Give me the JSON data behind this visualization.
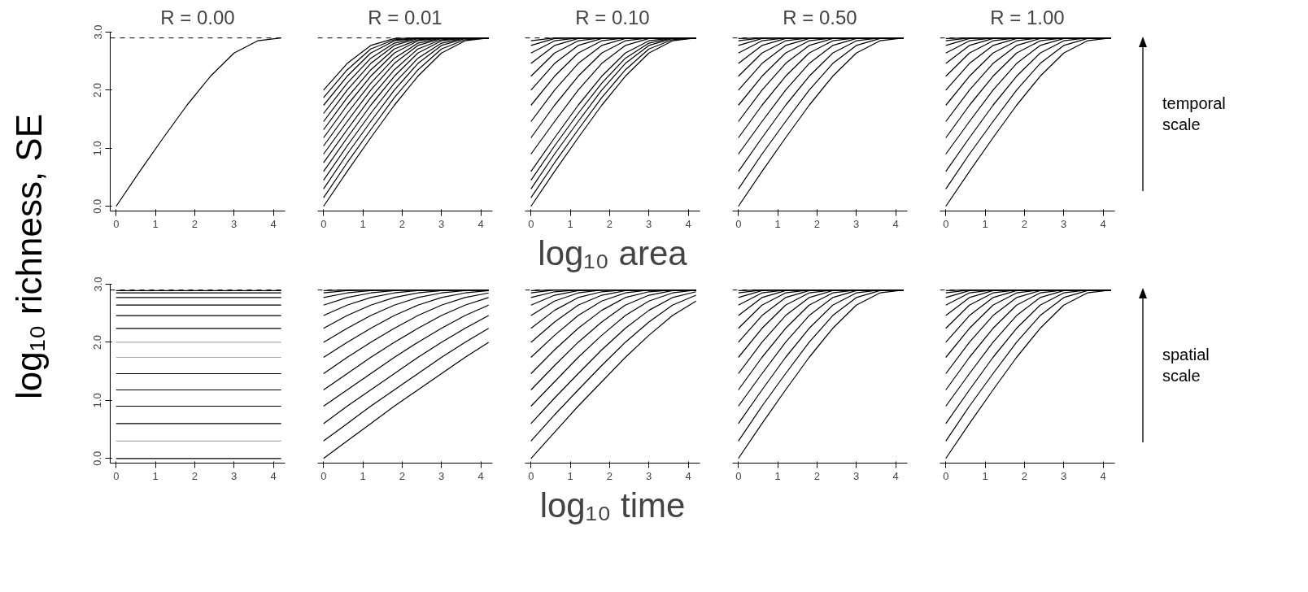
{
  "chart_data": [
    {
      "type": "line",
      "title": "R = 0.00",
      "ylabel": "log₁₀ richness, SE",
      "x": [
        0,
        0.6,
        1.2,
        1.8,
        2.4,
        3.0,
        3.6,
        4.2
      ],
      "xlim": [
        -0.15,
        4.3
      ],
      "ylim": [
        -0.08,
        3.0
      ],
      "xticks": [
        0,
        1,
        2,
        3,
        4
      ],
      "yticks": [
        {
          "value": 0,
          "label": "0.0"
        },
        {
          "value": 1,
          "label": "1.0"
        },
        {
          "value": 2,
          "label": "2.0"
        },
        {
          "value": 3,
          "label": "3.0"
        }
      ],
      "ref_lines": [
        {
          "axis": "y",
          "value": 2.9,
          "line_style": "dashed",
          "color": "#000000"
        }
      ],
      "series": [
        {
          "color": "#000000",
          "values": [
            0,
            0.6,
            1.18,
            1.74,
            2.24,
            2.64,
            2.85,
            2.9
          ]
        }
      ]
    },
    {
      "type": "line",
      "title": "R = 0.01",
      "tick_labels": "x",
      "x": [
        0,
        0.6,
        1.2,
        1.8,
        2.4,
        3.0,
        3.6,
        4.2
      ],
      "xlim": [
        -0.15,
        4.3
      ],
      "ylim": [
        -0.08,
        3.0
      ],
      "xticks": [
        0,
        1,
        2,
        3,
        4
      ],
      "ref_lines": [
        {
          "axis": "y",
          "value": 2.9,
          "line_style": "dashed",
          "color": "#000000"
        }
      ],
      "series": [
        {
          "color": "#000000",
          "values": [
            0,
            0.6,
            1.18,
            1.74,
            2.24,
            2.64,
            2.85,
            2.9
          ]
        },
        {
          "color": "#000000",
          "values": [
            0.15,
            0.75,
            1.32,
            1.87,
            2.35,
            2.71,
            2.87,
            2.9
          ]
        },
        {
          "color": "#000000",
          "values": [
            0.3,
            0.9,
            1.46,
            2.0,
            2.46,
            2.77,
            2.89,
            2.9
          ]
        },
        {
          "color": "#000000",
          "values": [
            0.45,
            1.04,
            1.6,
            2.12,
            2.55,
            2.81,
            2.9,
            2.9
          ]
        },
        {
          "color": "#000000",
          "values": [
            0.6,
            1.18,
            1.74,
            2.24,
            2.64,
            2.85,
            2.9,
            2.9
          ]
        },
        {
          "color": "#000000",
          "values": [
            0.75,
            1.32,
            1.87,
            2.35,
            2.71,
            2.87,
            2.9,
            2.9
          ]
        },
        {
          "color": "#000000",
          "values": [
            0.9,
            1.46,
            2.0,
            2.46,
            2.77,
            2.89,
            2.9,
            2.9
          ]
        },
        {
          "color": "#000000",
          "values": [
            1.04,
            1.6,
            2.12,
            2.55,
            2.81,
            2.9,
            2.9,
            2.9
          ]
        },
        {
          "color": "#000000",
          "values": [
            1.18,
            1.74,
            2.24,
            2.64,
            2.85,
            2.9,
            2.9,
            2.9
          ]
        },
        {
          "color": "#000000",
          "values": [
            1.32,
            1.87,
            2.35,
            2.71,
            2.87,
            2.9,
            2.9,
            2.9
          ]
        },
        {
          "color": "#000000",
          "values": [
            1.46,
            2.0,
            2.46,
            2.77,
            2.89,
            2.9,
            2.9,
            2.9
          ]
        },
        {
          "color": "#000000",
          "values": [
            1.6,
            2.12,
            2.55,
            2.81,
            2.9,
            2.9,
            2.9,
            2.9
          ]
        },
        {
          "color": "#000000",
          "values": [
            1.74,
            2.24,
            2.64,
            2.85,
            2.9,
            2.9,
            2.9,
            2.9
          ]
        },
        {
          "color": "#000000",
          "values": [
            1.87,
            2.35,
            2.71,
            2.87,
            2.9,
            2.9,
            2.9,
            2.9
          ]
        },
        {
          "color": "#000000",
          "values": [
            2.0,
            2.46,
            2.77,
            2.89,
            2.9,
            2.9,
            2.9,
            2.9
          ]
        }
      ]
    },
    {
      "type": "line",
      "title": "R = 0.10",
      "xlabel": "log₁₀ area",
      "tick_labels": "x",
      "x": [
        0,
        0.6,
        1.2,
        1.8,
        2.4,
        3.0,
        3.6,
        4.2
      ],
      "xlim": [
        -0.15,
        4.3
      ],
      "ylim": [
        -0.08,
        3.0
      ],
      "xticks": [
        0,
        1,
        2,
        3,
        4
      ],
      "ref_lines": [
        {
          "axis": "y",
          "value": 2.9,
          "line_style": "dashed",
          "color": "#000000"
        }
      ],
      "series": [
        {
          "color": "#000000",
          "values": [
            0,
            0.6,
            1.18,
            1.74,
            2.24,
            2.64,
            2.85,
            2.9
          ]
        },
        {
          "color": "#000000",
          "values": [
            0.15,
            0.75,
            1.32,
            1.87,
            2.35,
            2.71,
            2.87,
            2.9
          ]
        },
        {
          "color": "#000000",
          "values": [
            0.3,
            0.9,
            1.46,
            2.0,
            2.46,
            2.77,
            2.89,
            2.9
          ]
        },
        {
          "color": "#000000",
          "values": [
            0.45,
            1.04,
            1.6,
            2.12,
            2.55,
            2.81,
            2.9,
            2.9
          ]
        },
        {
          "color": "#000000",
          "values": [
            0.6,
            1.18,
            1.74,
            2.24,
            2.64,
            2.85,
            2.9,
            2.9
          ]
        },
        {
          "color": "#000000",
          "values": [
            0.9,
            1.46,
            2.0,
            2.46,
            2.77,
            2.89,
            2.9,
            2.9
          ]
        },
        {
          "color": "#000000",
          "values": [
            1.18,
            1.74,
            2.24,
            2.64,
            2.85,
            2.9,
            2.9,
            2.9
          ]
        },
        {
          "color": "#000000",
          "values": [
            1.46,
            2.0,
            2.46,
            2.77,
            2.89,
            2.9,
            2.9,
            2.9
          ]
        },
        {
          "color": "#000000",
          "values": [
            1.74,
            2.24,
            2.64,
            2.85,
            2.9,
            2.9,
            2.9,
            2.9
          ]
        },
        {
          "color": "#000000",
          "values": [
            2.0,
            2.46,
            2.77,
            2.89,
            2.9,
            2.9,
            2.9,
            2.9
          ]
        },
        {
          "color": "#000000",
          "values": [
            2.24,
            2.64,
            2.85,
            2.9,
            2.9,
            2.9,
            2.9,
            2.9
          ]
        },
        {
          "color": "#000000",
          "values": [
            2.46,
            2.77,
            2.89,
            2.9,
            2.9,
            2.9,
            2.9,
            2.9
          ]
        },
        {
          "color": "#000000",
          "values": [
            2.64,
            2.85,
            2.9,
            2.9,
            2.9,
            2.9,
            2.9,
            2.9
          ]
        },
        {
          "color": "#000000",
          "values": [
            2.77,
            2.89,
            2.9,
            2.9,
            2.9,
            2.9,
            2.9,
            2.9
          ]
        },
        {
          "color": "#000000",
          "values": [
            2.85,
            2.9,
            2.9,
            2.9,
            2.9,
            2.9,
            2.9,
            2.9
          ]
        }
      ]
    },
    {
      "type": "line",
      "title": "R = 0.50",
      "tick_labels": "x",
      "x": [
        0,
        0.6,
        1.2,
        1.8,
        2.4,
        3.0,
        3.6,
        4.2
      ],
      "xlim": [
        -0.15,
        4.3
      ],
      "ylim": [
        -0.08,
        3.0
      ],
      "xticks": [
        0,
        1,
        2,
        3,
        4
      ],
      "ref_lines": [
        {
          "axis": "y",
          "value": 2.9,
          "line_style": "dashed",
          "color": "#000000"
        }
      ],
      "series": [
        {
          "color": "#000000",
          "values": [
            0,
            0.6,
            1.18,
            1.74,
            2.24,
            2.64,
            2.85,
            2.9
          ]
        },
        {
          "color": "#000000",
          "values": [
            0.3,
            0.9,
            1.46,
            2.0,
            2.46,
            2.77,
            2.89,
            2.9
          ]
        },
        {
          "color": "#000000",
          "values": [
            0.6,
            1.18,
            1.74,
            2.24,
            2.64,
            2.85,
            2.9,
            2.9
          ]
        },
        {
          "color": "#000000",
          "values": [
            0.9,
            1.46,
            2.0,
            2.46,
            2.77,
            2.89,
            2.9,
            2.9
          ]
        },
        {
          "color": "#000000",
          "values": [
            1.18,
            1.74,
            2.24,
            2.64,
            2.85,
            2.9,
            2.9,
            2.9
          ]
        },
        {
          "color": "#000000",
          "values": [
            1.46,
            2.0,
            2.46,
            2.77,
            2.89,
            2.9,
            2.9,
            2.9
          ]
        },
        {
          "color": "#000000",
          "values": [
            1.74,
            2.24,
            2.64,
            2.85,
            2.9,
            2.9,
            2.9,
            2.9
          ]
        },
        {
          "color": "#000000",
          "values": [
            2.0,
            2.46,
            2.77,
            2.89,
            2.9,
            2.9,
            2.9,
            2.9
          ]
        },
        {
          "color": "#000000",
          "values": [
            2.24,
            2.64,
            2.85,
            2.9,
            2.9,
            2.9,
            2.9,
            2.9
          ]
        },
        {
          "color": "#000000",
          "values": [
            2.46,
            2.77,
            2.89,
            2.9,
            2.9,
            2.9,
            2.9,
            2.9
          ]
        },
        {
          "color": "#000000",
          "values": [
            2.64,
            2.85,
            2.9,
            2.9,
            2.9,
            2.9,
            2.9,
            2.9
          ]
        },
        {
          "color": "#000000",
          "values": [
            2.77,
            2.89,
            2.9,
            2.9,
            2.9,
            2.9,
            2.9,
            2.9
          ]
        },
        {
          "color": "#000000",
          "values": [
            2.85,
            2.9,
            2.9,
            2.9,
            2.9,
            2.9,
            2.9,
            2.9
          ]
        },
        {
          "color": "#000000",
          "values": [
            2.89,
            2.9,
            2.9,
            2.9,
            2.9,
            2.9,
            2.9,
            2.9
          ]
        }
      ]
    },
    {
      "type": "line",
      "title": "R = 1.00",
      "tick_labels": "x",
      "annotations": [
        "temporal scale"
      ],
      "x": [
        0,
        0.6,
        1.2,
        1.8,
        2.4,
        3.0,
        3.6,
        4.2
      ],
      "xlim": [
        -0.15,
        4.3
      ],
      "ylim": [
        -0.08,
        3.0
      ],
      "xticks": [
        0,
        1,
        2,
        3,
        4
      ],
      "ref_lines": [
        {
          "axis": "y",
          "value": 2.9,
          "line_style": "dashed",
          "color": "#000000"
        }
      ],
      "series": [
        {
          "color": "#000000",
          "values": [
            0,
            0.6,
            1.18,
            1.74,
            2.24,
            2.64,
            2.85,
            2.9
          ]
        },
        {
          "color": "#000000",
          "values": [
            0.3,
            0.9,
            1.46,
            2.0,
            2.46,
            2.77,
            2.89,
            2.9
          ]
        },
        {
          "color": "#000000",
          "values": [
            0.6,
            1.18,
            1.74,
            2.24,
            2.64,
            2.85,
            2.9,
            2.9
          ]
        },
        {
          "color": "#000000",
          "values": [
            0.9,
            1.46,
            2.0,
            2.46,
            2.77,
            2.89,
            2.9,
            2.9
          ]
        },
        {
          "color": "#000000",
          "values": [
            1.18,
            1.74,
            2.24,
            2.64,
            2.85,
            2.9,
            2.9,
            2.9
          ]
        },
        {
          "color": "#000000",
          "values": [
            1.46,
            2.0,
            2.46,
            2.77,
            2.89,
            2.9,
            2.9,
            2.9
          ]
        },
        {
          "color": "#000000",
          "values": [
            1.74,
            2.24,
            2.64,
            2.85,
            2.9,
            2.9,
            2.9,
            2.9
          ]
        },
        {
          "color": "#000000",
          "values": [
            2.0,
            2.46,
            2.77,
            2.89,
            2.9,
            2.9,
            2.9,
            2.9
          ]
        },
        {
          "color": "#000000",
          "values": [
            2.24,
            2.64,
            2.85,
            2.9,
            2.9,
            2.9,
            2.9,
            2.9
          ]
        },
        {
          "color": "#000000",
          "values": [
            2.46,
            2.77,
            2.89,
            2.9,
            2.9,
            2.9,
            2.9,
            2.9
          ]
        },
        {
          "color": "#000000",
          "values": [
            2.64,
            2.85,
            2.9,
            2.9,
            2.9,
            2.9,
            2.9,
            2.9
          ]
        },
        {
          "color": "#000000",
          "values": [
            2.77,
            2.89,
            2.9,
            2.9,
            2.9,
            2.9,
            2.9,
            2.9
          ]
        },
        {
          "color": "#000000",
          "values": [
            2.85,
            2.9,
            2.9,
            2.9,
            2.9,
            2.9,
            2.9,
            2.9
          ]
        },
        {
          "color": "#000000",
          "values": [
            2.89,
            2.9,
            2.9,
            2.9,
            2.9,
            2.9,
            2.9,
            2.9
          ]
        }
      ]
    },
    {
      "type": "line",
      "x": [
        0,
        0.6,
        1.2,
        1.8,
        2.4,
        3.0,
        3.6,
        4.2
      ],
      "xlim": [
        -0.15,
        4.3
      ],
      "ylim": [
        -0.08,
        3.0
      ],
      "xticks": [
        0,
        1,
        2,
        3,
        4
      ],
      "yticks": [
        {
          "value": 0,
          "label": "0.0"
        },
        {
          "value": 1,
          "label": "1.0"
        },
        {
          "value": 2,
          "label": "2.0"
        },
        {
          "value": 3,
          "label": "3.0"
        }
      ],
      "ref_lines": [
        {
          "axis": "y",
          "value": 2.9,
          "line_style": "dashed",
          "color": "#000000"
        }
      ],
      "series": [
        {
          "color": "#000000",
          "values": [
            0,
            0,
            0,
            0,
            0,
            0,
            0,
            0
          ]
        },
        {
          "color": "#aaaaaa",
          "values": [
            0.3,
            0.3,
            0.3,
            0.3,
            0.3,
            0.3,
            0.3,
            0.3
          ]
        },
        {
          "color": "#000000",
          "values": [
            0.6,
            0.6,
            0.6,
            0.6,
            0.6,
            0.6,
            0.6,
            0.6
          ]
        },
        {
          "color": "#000000",
          "values": [
            0.9,
            0.9,
            0.9,
            0.9,
            0.9,
            0.9,
            0.9,
            0.9
          ]
        },
        {
          "color": "#000000",
          "values": [
            1.18,
            1.18,
            1.18,
            1.18,
            1.18,
            1.18,
            1.18,
            1.18
          ]
        },
        {
          "color": "#000000",
          "values": [
            1.46,
            1.46,
            1.46,
            1.46,
            1.46,
            1.46,
            1.46,
            1.46
          ]
        },
        {
          "color": "#aaaaaa",
          "values": [
            1.74,
            1.74,
            1.74,
            1.74,
            1.74,
            1.74,
            1.74,
            1.74
          ]
        },
        {
          "color": "#aaaaaa",
          "values": [
            2.0,
            2.0,
            2.0,
            2.0,
            2.0,
            2.0,
            2.0,
            2.0
          ]
        },
        {
          "color": "#000000",
          "values": [
            2.24,
            2.24,
            2.24,
            2.24,
            2.24,
            2.24,
            2.24,
            2.24
          ]
        },
        {
          "color": "#000000",
          "values": [
            2.46,
            2.46,
            2.46,
            2.46,
            2.46,
            2.46,
            2.46,
            2.46
          ]
        },
        {
          "color": "#000000",
          "values": [
            2.64,
            2.64,
            2.64,
            2.64,
            2.64,
            2.64,
            2.64,
            2.64
          ]
        },
        {
          "color": "#000000",
          "values": [
            2.77,
            2.77,
            2.77,
            2.77,
            2.77,
            2.77,
            2.77,
            2.77
          ]
        },
        {
          "color": "#000000",
          "values": [
            2.85,
            2.85,
            2.85,
            2.85,
            2.85,
            2.85,
            2.85,
            2.85
          ]
        },
        {
          "color": "#000000",
          "values": [
            2.89,
            2.89,
            2.89,
            2.89,
            2.89,
            2.89,
            2.89,
            2.89
          ]
        }
      ]
    },
    {
      "type": "line",
      "tick_labels": "x",
      "x": [
        0,
        0.6,
        1.2,
        1.8,
        2.4,
        3.0,
        3.6,
        4.2
      ],
      "xlim": [
        -0.15,
        4.3
      ],
      "ylim": [
        -0.08,
        3.0
      ],
      "xticks": [
        0,
        1,
        2,
        3,
        4
      ],
      "ref_lines": [
        {
          "axis": "y",
          "value": 2.9,
          "line_style": "dashed",
          "color": "#000000"
        }
      ],
      "series": [
        {
          "color": "#000000",
          "values": [
            0,
            0.3,
            0.6,
            0.9,
            1.18,
            1.46,
            1.74,
            2.0
          ]
        },
        {
          "color": "#000000",
          "values": [
            0.3,
            0.6,
            0.9,
            1.18,
            1.46,
            1.74,
            2.0,
            2.24
          ]
        },
        {
          "color": "#000000",
          "values": [
            0.6,
            0.9,
            1.18,
            1.46,
            1.74,
            2.0,
            2.24,
            2.46
          ]
        },
        {
          "color": "#000000",
          "values": [
            0.9,
            1.18,
            1.46,
            1.74,
            2.0,
            2.24,
            2.46,
            2.64
          ]
        },
        {
          "color": "#000000",
          "values": [
            1.18,
            1.46,
            1.74,
            2.0,
            2.24,
            2.46,
            2.64,
            2.77
          ]
        },
        {
          "color": "#000000",
          "values": [
            1.46,
            1.74,
            2.0,
            2.24,
            2.46,
            2.64,
            2.77,
            2.85
          ]
        },
        {
          "color": "#000000",
          "values": [
            1.74,
            2.0,
            2.24,
            2.46,
            2.64,
            2.77,
            2.85,
            2.89
          ]
        },
        {
          "color": "#000000",
          "values": [
            2.0,
            2.24,
            2.46,
            2.64,
            2.77,
            2.85,
            2.89,
            2.9
          ]
        },
        {
          "color": "#000000",
          "values": [
            2.24,
            2.46,
            2.64,
            2.77,
            2.85,
            2.89,
            2.9,
            2.9
          ]
        },
        {
          "color": "#000000",
          "values": [
            2.46,
            2.64,
            2.77,
            2.85,
            2.89,
            2.9,
            2.9,
            2.9
          ]
        },
        {
          "color": "#000000",
          "values": [
            2.64,
            2.77,
            2.85,
            2.89,
            2.9,
            2.9,
            2.9,
            2.9
          ]
        },
        {
          "color": "#000000",
          "values": [
            2.77,
            2.85,
            2.89,
            2.9,
            2.9,
            2.9,
            2.9,
            2.9
          ]
        },
        {
          "color": "#000000",
          "values": [
            2.85,
            2.89,
            2.9,
            2.9,
            2.9,
            2.9,
            2.9,
            2.9
          ]
        },
        {
          "color": "#000000",
          "values": [
            2.89,
            2.9,
            2.9,
            2.9,
            2.9,
            2.9,
            2.9,
            2.9
          ]
        }
      ]
    },
    {
      "type": "line",
      "xlabel": "log₁₀ time",
      "tick_labels": "x",
      "x": [
        0,
        0.6,
        1.2,
        1.8,
        2.4,
        3.0,
        3.6,
        4.2
      ],
      "xlim": [
        -0.15,
        4.3
      ],
      "ylim": [
        -0.08,
        3.0
      ],
      "xticks": [
        0,
        1,
        2,
        3,
        4
      ],
      "ref_lines": [
        {
          "axis": "y",
          "value": 2.9,
          "line_style": "dashed",
          "color": "#000000"
        }
      ],
      "series": [
        {
          "color": "#000000",
          "values": [
            0,
            0.45,
            0.9,
            1.32,
            1.74,
            2.12,
            2.46,
            2.71
          ]
        },
        {
          "color": "#000000",
          "values": [
            0.3,
            0.75,
            1.18,
            1.6,
            2.0,
            2.35,
            2.64,
            2.81
          ]
        },
        {
          "color": "#000000",
          "values": [
            0.6,
            1.04,
            1.46,
            1.87,
            2.24,
            2.55,
            2.77,
            2.87
          ]
        },
        {
          "color": "#000000",
          "values": [
            0.9,
            1.32,
            1.74,
            2.12,
            2.46,
            2.71,
            2.85,
            2.9
          ]
        },
        {
          "color": "#000000",
          "values": [
            1.18,
            1.6,
            2.0,
            2.35,
            2.64,
            2.81,
            2.89,
            2.9
          ]
        },
        {
          "color": "#000000",
          "values": [
            1.46,
            1.87,
            2.24,
            2.55,
            2.77,
            2.87,
            2.9,
            2.9
          ]
        },
        {
          "color": "#000000",
          "values": [
            1.74,
            2.12,
            2.46,
            2.71,
            2.85,
            2.9,
            2.9,
            2.9
          ]
        },
        {
          "color": "#000000",
          "values": [
            2.0,
            2.35,
            2.64,
            2.81,
            2.89,
            2.9,
            2.9,
            2.9
          ]
        },
        {
          "color": "#000000",
          "values": [
            2.24,
            2.55,
            2.77,
            2.87,
            2.9,
            2.9,
            2.9,
            2.9
          ]
        },
        {
          "color": "#000000",
          "values": [
            2.46,
            2.71,
            2.85,
            2.9,
            2.9,
            2.9,
            2.9,
            2.9
          ]
        },
        {
          "color": "#000000",
          "values": [
            2.64,
            2.81,
            2.89,
            2.9,
            2.9,
            2.9,
            2.9,
            2.9
          ]
        },
        {
          "color": "#000000",
          "values": [
            2.77,
            2.87,
            2.9,
            2.9,
            2.9,
            2.9,
            2.9,
            2.9
          ]
        },
        {
          "color": "#000000",
          "values": [
            2.85,
            2.9,
            2.9,
            2.9,
            2.9,
            2.9,
            2.9,
            2.9
          ]
        },
        {
          "color": "#000000",
          "values": [
            2.89,
            2.9,
            2.9,
            2.9,
            2.9,
            2.9,
            2.9,
            2.9
          ]
        }
      ]
    },
    {
      "type": "line",
      "tick_labels": "x",
      "x": [
        0,
        0.6,
        1.2,
        1.8,
        2.4,
        3.0,
        3.6,
        4.2
      ],
      "xlim": [
        -0.15,
        4.3
      ],
      "ylim": [
        -0.08,
        3.0
      ],
      "xticks": [
        0,
        1,
        2,
        3,
        4
      ],
      "ref_lines": [
        {
          "axis": "y",
          "value": 2.9,
          "line_style": "dashed",
          "color": "#000000"
        }
      ],
      "series": [
        {
          "color": "#000000",
          "values": [
            0,
            0.6,
            1.18,
            1.74,
            2.24,
            2.64,
            2.85,
            2.9
          ]
        },
        {
          "color": "#000000",
          "values": [
            0.3,
            0.9,
            1.46,
            2.0,
            2.46,
            2.77,
            2.89,
            2.9
          ]
        },
        {
          "color": "#000000",
          "values": [
            0.6,
            1.18,
            1.74,
            2.24,
            2.64,
            2.85,
            2.9,
            2.9
          ]
        },
        {
          "color": "#000000",
          "values": [
            0.9,
            1.46,
            2.0,
            2.46,
            2.77,
            2.89,
            2.9,
            2.9
          ]
        },
        {
          "color": "#000000",
          "values": [
            1.18,
            1.74,
            2.24,
            2.64,
            2.85,
            2.9,
            2.9,
            2.9
          ]
        },
        {
          "color": "#000000",
          "values": [
            1.46,
            2.0,
            2.46,
            2.77,
            2.89,
            2.9,
            2.9,
            2.9
          ]
        },
        {
          "color": "#000000",
          "values": [
            1.74,
            2.24,
            2.64,
            2.85,
            2.9,
            2.9,
            2.9,
            2.9
          ]
        },
        {
          "color": "#000000",
          "values": [
            2.0,
            2.46,
            2.77,
            2.89,
            2.9,
            2.9,
            2.9,
            2.9
          ]
        },
        {
          "color": "#000000",
          "values": [
            2.24,
            2.64,
            2.85,
            2.9,
            2.9,
            2.9,
            2.9,
            2.9
          ]
        },
        {
          "color": "#000000",
          "values": [
            2.46,
            2.77,
            2.89,
            2.9,
            2.9,
            2.9,
            2.9,
            2.9
          ]
        },
        {
          "color": "#000000",
          "values": [
            2.64,
            2.85,
            2.9,
            2.9,
            2.9,
            2.9,
            2.9,
            2.9
          ]
        },
        {
          "color": "#000000",
          "values": [
            2.77,
            2.89,
            2.9,
            2.9,
            2.9,
            2.9,
            2.9,
            2.9
          ]
        },
        {
          "color": "#000000",
          "values": [
            2.85,
            2.9,
            2.9,
            2.9,
            2.9,
            2.9,
            2.9,
            2.9
          ]
        },
        {
          "color": "#000000",
          "values": [
            2.89,
            2.9,
            2.9,
            2.9,
            2.9,
            2.9,
            2.9,
            2.9
          ]
        }
      ]
    },
    {
      "type": "line",
      "tick_labels": "x",
      "annotations": [
        "spatial scale"
      ],
      "x": [
        0,
        0.6,
        1.2,
        1.8,
        2.4,
        3.0,
        3.6,
        4.2
      ],
      "xlim": [
        -0.15,
        4.3
      ],
      "ylim": [
        -0.08,
        3.0
      ],
      "xticks": [
        0,
        1,
        2,
        3,
        4
      ],
      "ref_lines": [
        {
          "axis": "y",
          "value": 2.9,
          "line_style": "dashed",
          "color": "#000000"
        }
      ],
      "series": [
        {
          "color": "#000000",
          "values": [
            0,
            0.6,
            1.18,
            1.74,
            2.24,
            2.64,
            2.85,
            2.9
          ]
        },
        {
          "color": "#000000",
          "values": [
            0.3,
            0.9,
            1.46,
            2.0,
            2.46,
            2.77,
            2.89,
            2.9
          ]
        },
        {
          "color": "#000000",
          "values": [
            0.6,
            1.18,
            1.74,
            2.24,
            2.64,
            2.85,
            2.9,
            2.9
          ]
        },
        {
          "color": "#000000",
          "values": [
            0.9,
            1.46,
            2.0,
            2.46,
            2.77,
            2.89,
            2.9,
            2.9
          ]
        },
        {
          "color": "#000000",
          "values": [
            1.18,
            1.74,
            2.24,
            2.64,
            2.85,
            2.9,
            2.9,
            2.9
          ]
        },
        {
          "color": "#000000",
          "values": [
            1.46,
            2.0,
            2.46,
            2.77,
            2.89,
            2.9,
            2.9,
            2.9
          ]
        },
        {
          "color": "#000000",
          "values": [
            1.74,
            2.24,
            2.64,
            2.85,
            2.9,
            2.9,
            2.9,
            2.9
          ]
        },
        {
          "color": "#000000",
          "values": [
            2.0,
            2.46,
            2.77,
            2.89,
            2.9,
            2.9,
            2.9,
            2.9
          ]
        },
        {
          "color": "#000000",
          "values": [
            2.24,
            2.64,
            2.85,
            2.9,
            2.9,
            2.9,
            2.9,
            2.9
          ]
        },
        {
          "color": "#000000",
          "values": [
            2.46,
            2.77,
            2.89,
            2.9,
            2.9,
            2.9,
            2.9,
            2.9
          ]
        },
        {
          "color": "#000000",
          "values": [
            2.64,
            2.85,
            2.9,
            2.9,
            2.9,
            2.9,
            2.9,
            2.9
          ]
        },
        {
          "color": "#000000",
          "values": [
            2.77,
            2.89,
            2.9,
            2.9,
            2.9,
            2.9,
            2.9,
            2.9
          ]
        },
        {
          "color": "#000000",
          "values": [
            2.85,
            2.9,
            2.9,
            2.9,
            2.9,
            2.9,
            2.9,
            2.9
          ]
        },
        {
          "color": "#000000",
          "values": [
            2.89,
            2.9,
            2.9,
            2.9,
            2.9,
            2.9,
            2.9,
            2.9
          ]
        }
      ]
    }
  ]
}
